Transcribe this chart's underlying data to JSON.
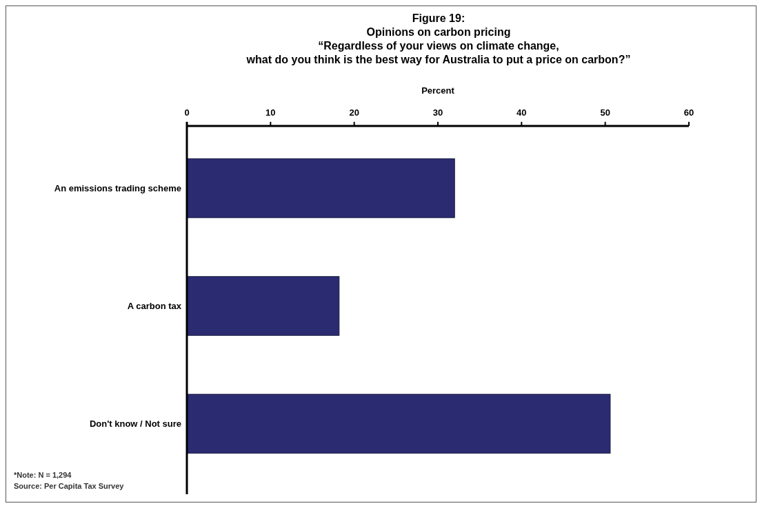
{
  "chart_data": {
    "type": "bar",
    "orientation": "horizontal",
    "title": "Figure 19:\nOpinions on carbon pricing\n“Regardless of your views on climate change,\nwhat do you think is the best way for Australia to put a price on carbon?”",
    "xlabel": "Percent",
    "categories": [
      "An emissions trading scheme",
      "A carbon tax",
      "Don't know / Not sure"
    ],
    "values": [
      32,
      18.2,
      50.6
    ],
    "color": "#2b2b72",
    "xlim": [
      0,
      60
    ],
    "xticks": [
      0,
      10,
      20,
      30,
      40,
      50,
      60
    ],
    "grid": false,
    "annotations": [
      "*Note: N = 1,294",
      "Source: Per Capita Tax Survey"
    ]
  }
}
